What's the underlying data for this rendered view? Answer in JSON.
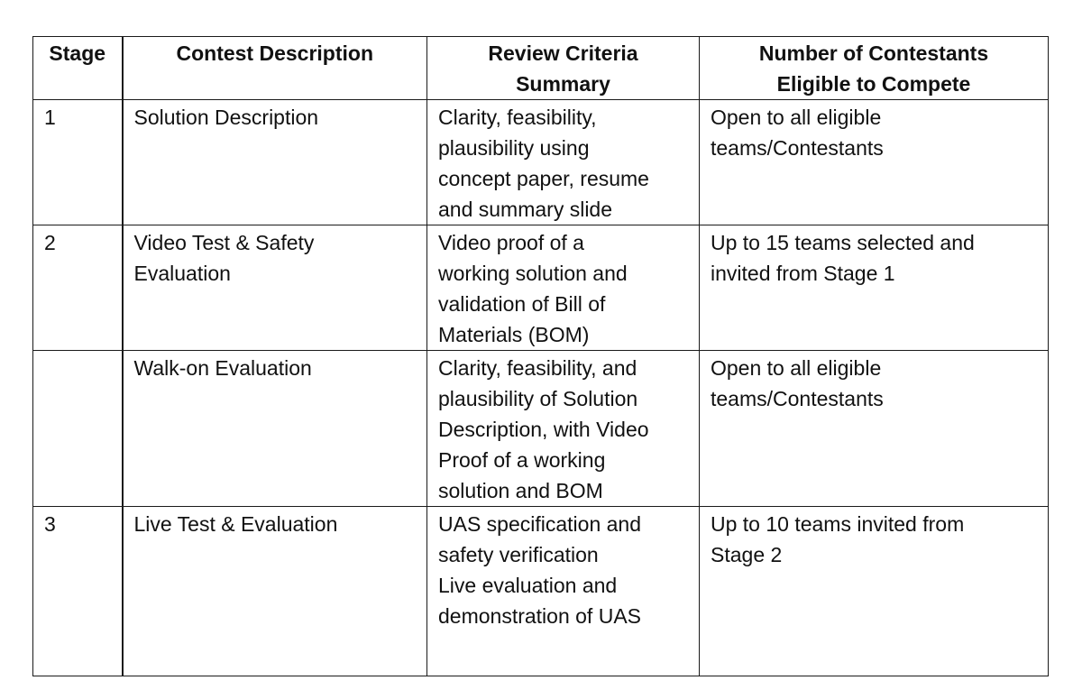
{
  "table": {
    "headers": {
      "stage": "Stage",
      "description": "Contest Description",
      "criteria": [
        "Review Criteria",
        "Summary"
      ],
      "contestants": [
        "Number of Contestants",
        "Eligible to Compete"
      ]
    },
    "rows": [
      {
        "stage": "1",
        "description": [
          "Solution Description"
        ],
        "criteria": [
          "Clarity, feasibility,",
          "plausibility using",
          "concept paper, resume",
          "and summary slide"
        ],
        "contestants": [
          "Open to all eligible",
          "teams/Contestants"
        ]
      },
      {
        "stage": "2",
        "description": [
          "Video Test & Safety",
          "Evaluation"
        ],
        "criteria": [
          "Video proof of a",
          "working solution and",
          "validation of Bill of",
          "Materials (BOM)"
        ],
        "contestants": [
          "Up to 15 teams selected and",
          "invited from Stage 1"
        ]
      },
      {
        "stage": "",
        "description": [
          "Walk-on Evaluation"
        ],
        "criteria": [
          "Clarity, feasibility, and",
          "plausibility of Solution",
          "Description, with Video",
          "Proof of a working",
          "solution and BOM"
        ],
        "contestants": [
          "Open to all eligible",
          "teams/Contestants"
        ]
      },
      {
        "stage": "3",
        "description": [
          "Live Test & Evaluation"
        ],
        "criteria": [
          "UAS specification and",
          "safety verification",
          "Live evaluation and",
          "demonstration of UAS"
        ],
        "contestants": [
          "Up to 10 teams invited from",
          "Stage 2"
        ]
      }
    ]
  }
}
